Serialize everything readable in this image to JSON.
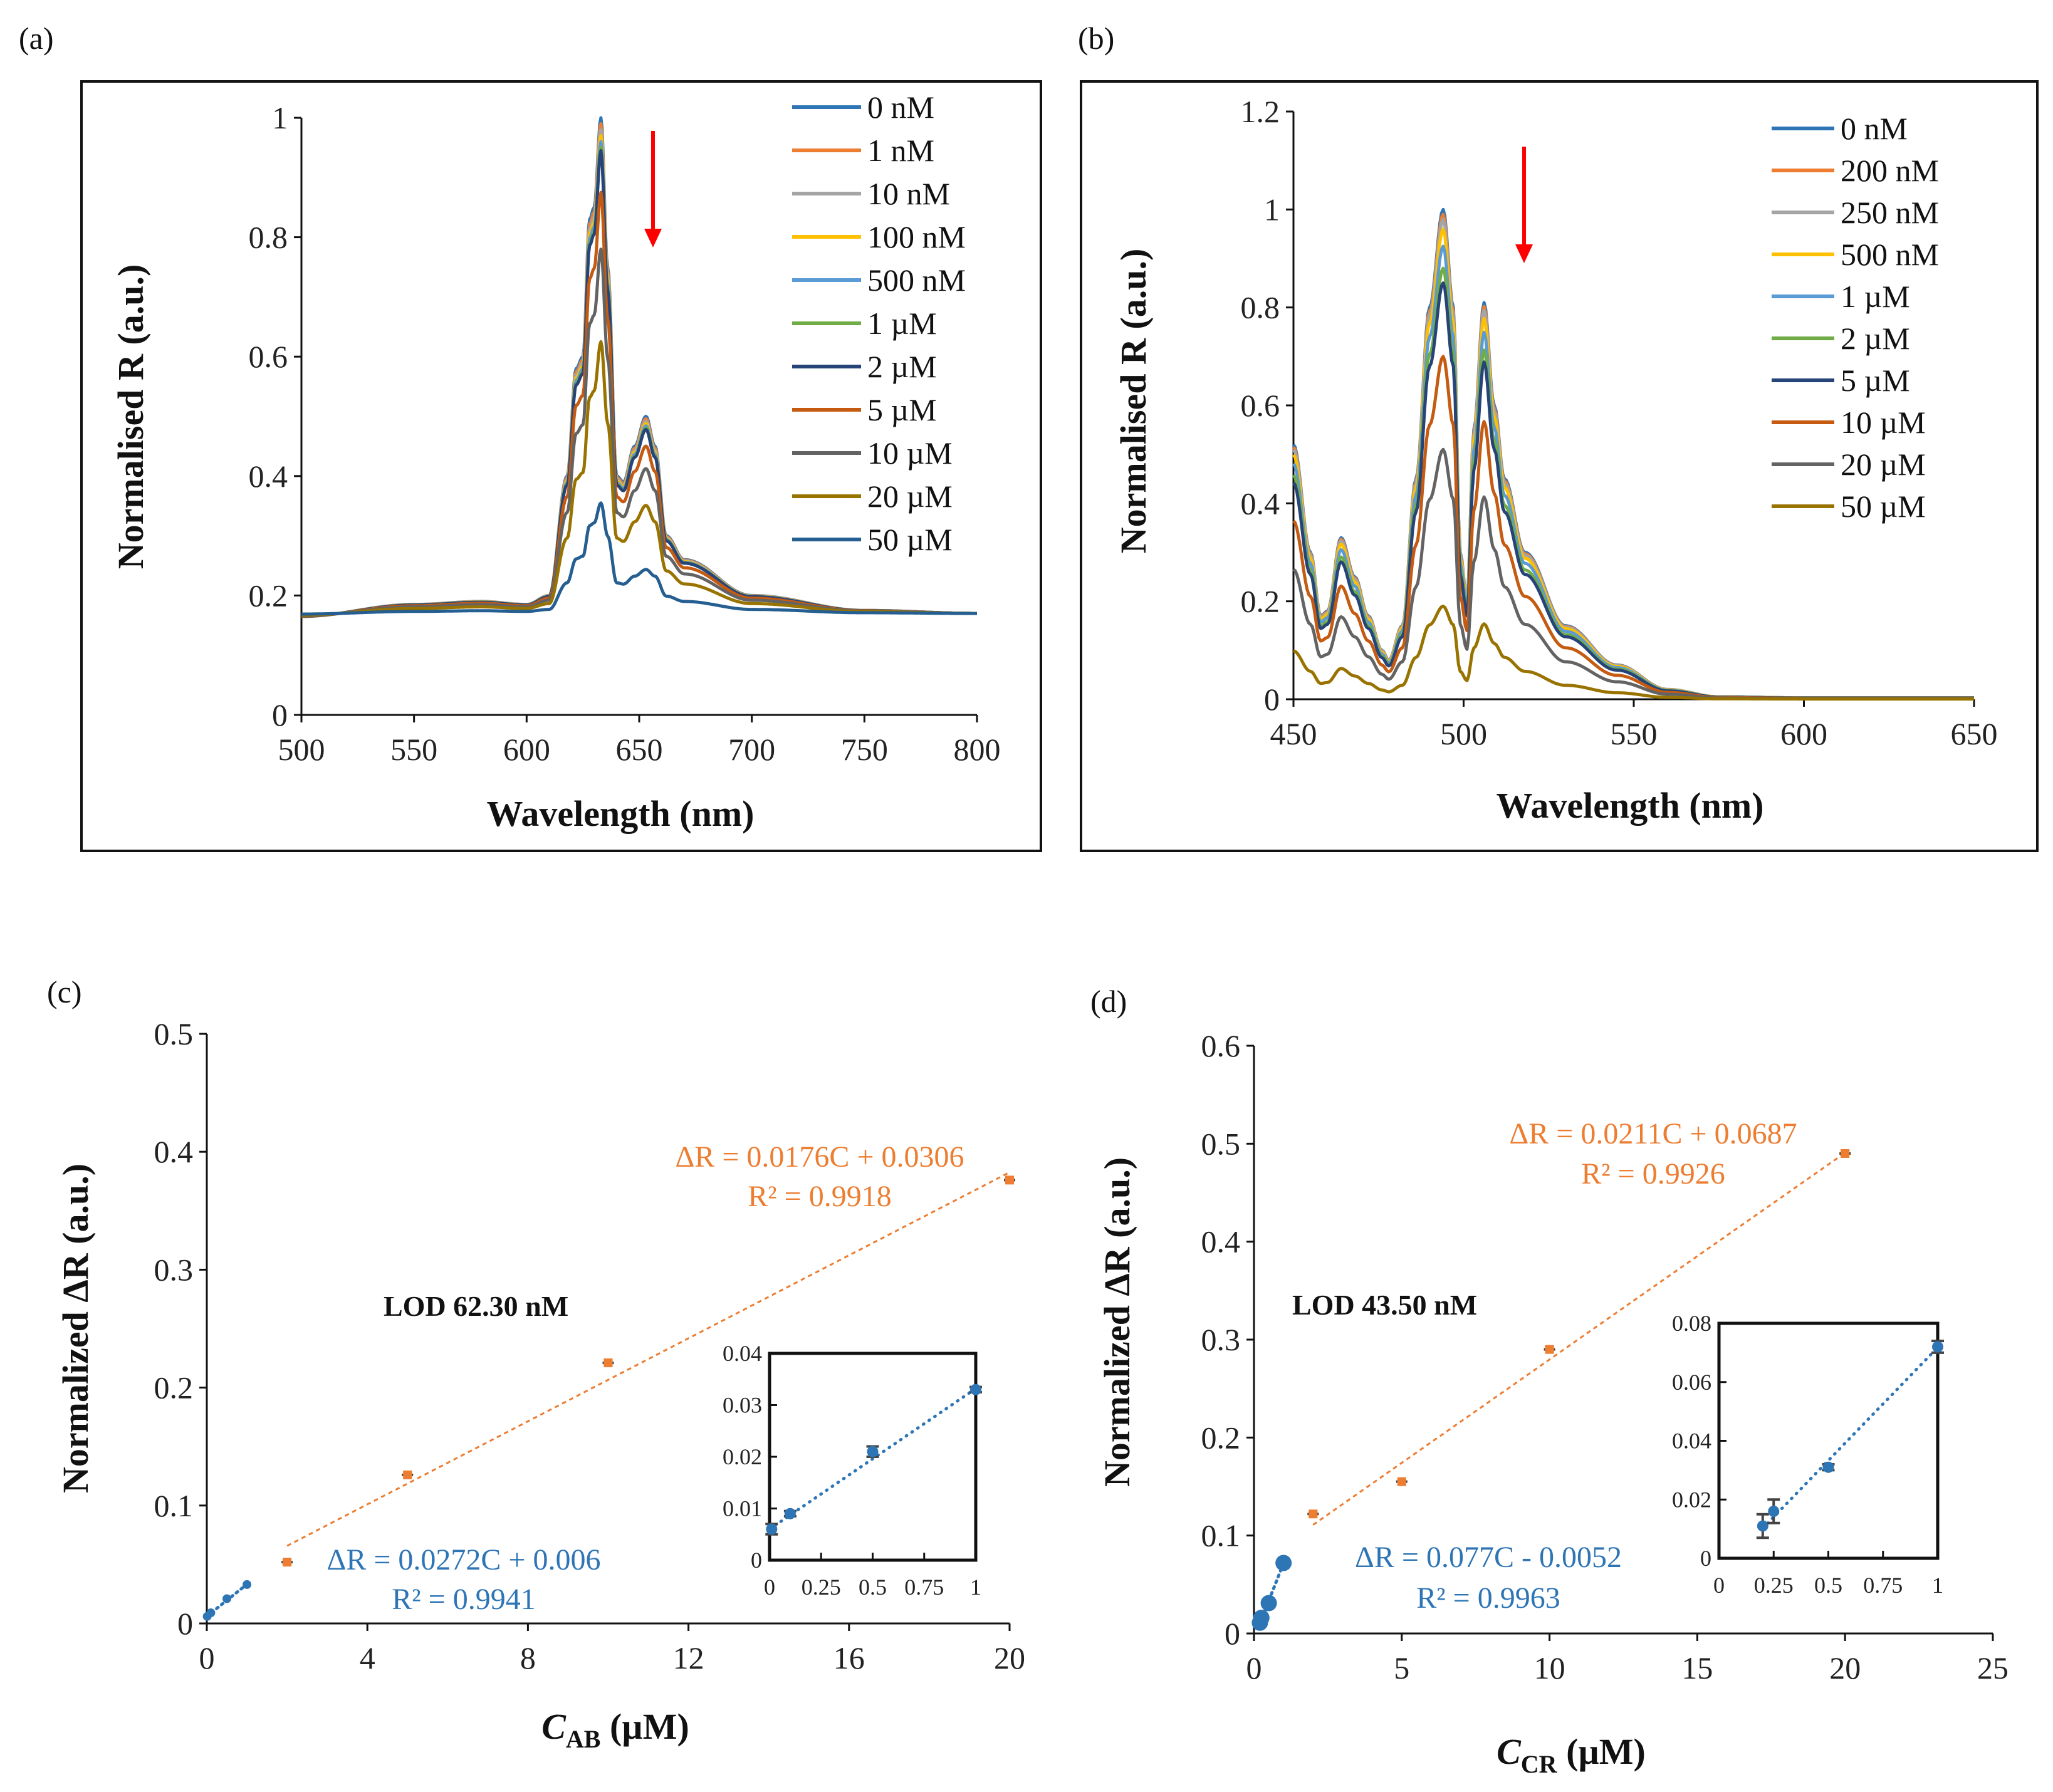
{
  "chart_data": [
    {
      "id": "a",
      "panel_label": "(a)",
      "type": "line",
      "xlabel": "Wavelength (nm)",
      "ylabel": "Normalised R (a.u.)",
      "xlim": [
        500,
        800
      ],
      "ylim": [
        0,
        1
      ],
      "xticks": [
        "500",
        "550",
        "600",
        "650",
        "700",
        "750",
        "800"
      ],
      "yticks": [
        "0",
        "0.2",
        "0.4",
        "0.6",
        "0.8",
        "1"
      ],
      "legend_position": "top-right",
      "arrow": "down (red), near 655 nm",
      "baseline": 0.17,
      "template_x": [
        500,
        550,
        580,
        600,
        610,
        618,
        622,
        625,
        628,
        630,
        633,
        636,
        640,
        643,
        648,
        653,
        657,
        662,
        670,
        700,
        750,
        800
      ],
      "template_y": [
        0.165,
        0.185,
        0.19,
        0.185,
        0.2,
        0.4,
        0.58,
        0.6,
        0.83,
        0.85,
        1.0,
        0.75,
        0.4,
        0.39,
        0.45,
        0.5,
        0.45,
        0.3,
        0.26,
        0.2,
        0.175,
        0.17
      ],
      "series": [
        {
          "name": "0 nM",
          "peak": 1.0,
          "color": "#2E75B6"
        },
        {
          "name": "1 nM",
          "peak": 0.99,
          "color": "#ED7D31"
        },
        {
          "name": "10 nM",
          "peak": 0.98,
          "color": "#A5A5A5"
        },
        {
          "name": "100 nM",
          "peak": 0.97,
          "color": "#FFC000"
        },
        {
          "name": "500 nM",
          "peak": 0.96,
          "color": "#5B9BD5"
        },
        {
          "name": "1 µM",
          "peak": 0.95,
          "color": "#70AD47"
        },
        {
          "name": "2 µM",
          "peak": 0.945,
          "color": "#264478"
        },
        {
          "name": "5 µM",
          "peak": 0.875,
          "color": "#C55A11"
        },
        {
          "name": "10 µM",
          "peak": 0.78,
          "color": "#636363"
        },
        {
          "name": "20 µM",
          "peak": 0.625,
          "color": "#997300"
        },
        {
          "name": "50 µM",
          "peak": 0.355,
          "color": "#255E91"
        }
      ]
    },
    {
      "id": "b",
      "panel_label": "(b)",
      "type": "line",
      "xlabel": "Wavelength (nm)",
      "ylabel": "Normalised R (a.u.)",
      "xlim": [
        450,
        650
      ],
      "ylim": [
        0,
        1.2
      ],
      "xticks": [
        "450",
        "500",
        "550",
        "600",
        "650"
      ],
      "yticks": [
        "0",
        "0.2",
        "0.4",
        "0.6",
        "0.8",
        "1",
        "1.2"
      ],
      "legend_position": "top-right",
      "arrow": "down (red), near 518 nm",
      "baseline": 0.0,
      "template_x": [
        450,
        455,
        458,
        460,
        464,
        468,
        472,
        476,
        478,
        482,
        486,
        490,
        494,
        497,
        499,
        501,
        503,
        506,
        509,
        512,
        518,
        530,
        545,
        560,
        575,
        600,
        650
      ],
      "template_y": [
        0.52,
        0.3,
        0.17,
        0.18,
        0.33,
        0.25,
        0.17,
        0.1,
        0.08,
        0.15,
        0.45,
        0.8,
        1.0,
        0.8,
        0.3,
        0.2,
        0.55,
        0.81,
        0.6,
        0.45,
        0.3,
        0.15,
        0.07,
        0.02,
        0.005,
        0.003,
        0.003
      ],
      "series": [
        {
          "name": "0 nM",
          "peak": 1.0,
          "color": "#2E75B6"
        },
        {
          "name": "200 nM",
          "peak": 0.99,
          "color": "#ED7D31"
        },
        {
          "name": "250 nM",
          "peak": 0.98,
          "color": "#A5A5A5"
        },
        {
          "name": "500 nM",
          "peak": 0.96,
          "color": "#FFC000"
        },
        {
          "name": "1  µM",
          "peak": 0.925,
          "color": "#5B9BD5"
        },
        {
          "name": "2  µM",
          "peak": 0.88,
          "color": "#70AD47"
        },
        {
          "name": "5  µM",
          "peak": 0.85,
          "color": "#264478"
        },
        {
          "name": "10  µM",
          "peak": 0.7,
          "color": "#C55A11"
        },
        {
          "name": "20  µM",
          "peak": 0.51,
          "color": "#636363"
        },
        {
          "name": "50  µM",
          "peak": 0.19,
          "color": "#997300"
        }
      ]
    },
    {
      "id": "c",
      "panel_label": "(c)",
      "type": "scatter",
      "xlabel_var": "C",
      "xlabel_sub": "AB",
      "xlabel_unit": " (µM)",
      "ylabel": "Normalized ΔR (a.u.)",
      "xlim": [
        0,
        20
      ],
      "ylim": [
        0,
        0.5
      ],
      "xticks": [
        "0",
        "4",
        "8",
        "12",
        "16",
        "20"
      ],
      "yticks": [
        "0",
        "0.1",
        "0.2",
        "0.3",
        "0.4",
        "0.5"
      ],
      "lod": "LOD 62.30 nM",
      "high": {
        "x": [
          2,
          5,
          10,
          20
        ],
        "y": [
          0.052,
          0.126,
          0.221,
          0.376
        ],
        "color": "#ED7D31",
        "fit": {
          "slope": 0.0176,
          "intercept": 0.0306,
          "from": 2,
          "to": 20
        },
        "equation": "ΔR = 0.0176C + 0.0306",
        "r2": "R² = 0.9918"
      },
      "low": {
        "x": [
          0.01,
          0.1,
          0.5,
          1
        ],
        "y": [
          0.006,
          0.009,
          0.021,
          0.033
        ],
        "err": [
          0.001,
          0.0005,
          0.001,
          0.0005
        ],
        "color": "#2E75B6",
        "fit": {
          "slope": 0.0272,
          "intercept": 0.006,
          "from": 0,
          "to": 1
        },
        "equation": "ΔR = 0.0272C + 0.006",
        "r2": "R² = 0.9941"
      },
      "inset": {
        "xlim": [
          0,
          1
        ],
        "ylim": [
          0,
          0.04
        ],
        "xticks": [
          "0",
          "0.25",
          "0.5",
          "0.75",
          "1"
        ],
        "yticks": [
          "0",
          "0.01",
          "0.02",
          "0.03",
          "0.04"
        ]
      }
    },
    {
      "id": "d",
      "panel_label": "(d)",
      "type": "scatter",
      "xlabel_var": "C",
      "xlabel_sub": "CR",
      "xlabel_unit": " (µM)",
      "ylabel": "Normalized ΔR (a.u.)",
      "xlim": [
        0,
        25
      ],
      "ylim": [
        0,
        0.6
      ],
      "xticks": [
        "0",
        "5",
        "10",
        "15",
        "20",
        "25"
      ],
      "yticks": [
        "0",
        "0.1",
        "0.2",
        "0.3",
        "0.4",
        "0.5",
        "0.6"
      ],
      "lod": "LOD 43.50 nM",
      "high": {
        "x": [
          2,
          5,
          10,
          20
        ],
        "y": [
          0.122,
          0.155,
          0.29,
          0.49
        ],
        "color": "#ED7D31",
        "fit": {
          "slope": 0.0211,
          "intercept": 0.0687,
          "from": 2,
          "to": 20
        },
        "equation": "ΔR = 0.0211C + 0.0687",
        "r2": "R² = 0.9926"
      },
      "low": {
        "x": [
          0.2,
          0.25,
          0.5,
          1
        ],
        "y": [
          0.011,
          0.016,
          0.031,
          0.072
        ],
        "err": [
          0.004,
          0.004,
          0.001,
          0.002
        ],
        "color": "#2E75B6",
        "fit": {
          "slope": 0.077,
          "intercept": -0.0052,
          "from": 0.2,
          "to": 1
        },
        "equation": "ΔR = 0.077C - 0.0052",
        "r2": "R² = 0.9963"
      },
      "inset": {
        "xlim": [
          0,
          1
        ],
        "ylim": [
          0,
          0.08
        ],
        "xticks": [
          "0",
          "0.25",
          "0.5",
          "0.75",
          "1"
        ],
        "yticks": [
          "0",
          "0.02",
          "0.04",
          "0.06",
          "0.08"
        ]
      }
    }
  ]
}
